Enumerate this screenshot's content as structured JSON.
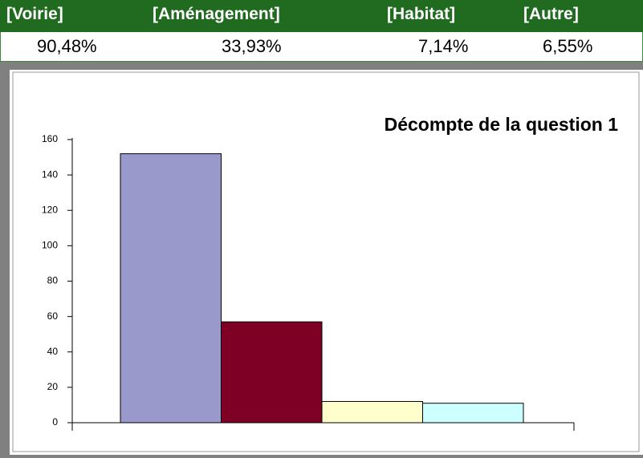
{
  "table": {
    "headers": [
      "[Voirie]",
      "[Aménagement]",
      "[Habitat]",
      "[Autre]"
    ],
    "values": [
      "90,48%",
      "33,93%",
      "7,14%",
      "6,55%"
    ]
  },
  "chart_data": {
    "type": "bar",
    "title": "Décompte de la question 1",
    "values": [
      152,
      57,
      12,
      11
    ],
    "colors": [
      "#9999cc",
      "#7f0025",
      "#ffffcc",
      "#ccffff"
    ],
    "ylim": [
      0,
      160
    ],
    "yticks": [
      0,
      20,
      40,
      60,
      80,
      100,
      120,
      140,
      160
    ]
  }
}
